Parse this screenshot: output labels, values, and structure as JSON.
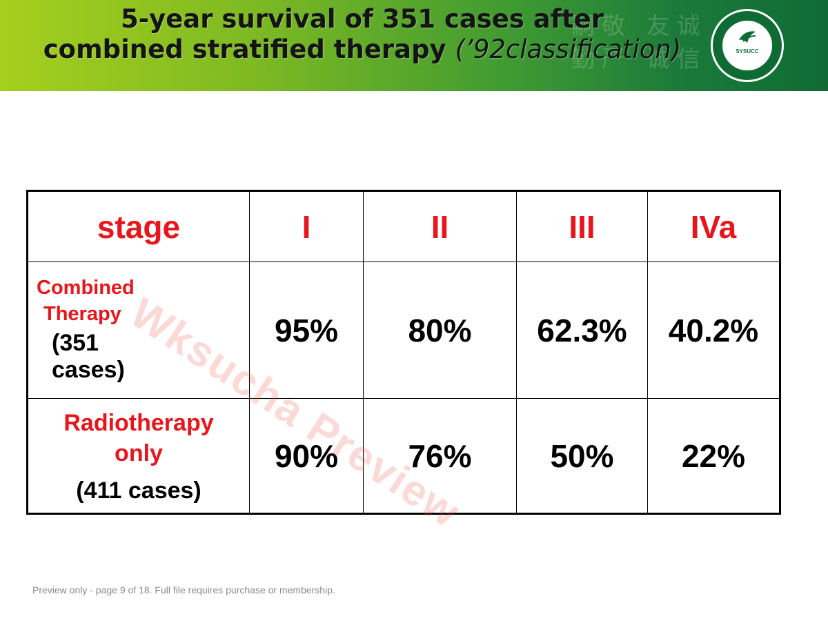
{
  "slide": {
    "title_line1": "5-year survival of 351 cases after",
    "title_line2_main": "combined stratified therapy ",
    "title_line2_italic": "(’92classification)",
    "logo_text": "SYSUCC"
  },
  "table": {
    "header": {
      "stage": "stage",
      "I": "I",
      "II": "II",
      "III": "III",
      "IVa": "IVa"
    },
    "rows": [
      {
        "label_red_1": "Combined",
        "label_red_2": "Therapy",
        "label_black": "(351 cases)",
        "values": [
          "95%",
          "80%",
          "62.3%",
          "40.2%"
        ]
      },
      {
        "label_red_1": "Radiotherapy",
        "label_red_2": "only",
        "label_black": "(411 cases)",
        "values": [
          "90%",
          "76%",
          "50%",
          "22%"
        ]
      }
    ]
  },
  "watermark": "Wksucha Preview",
  "footer": "Preview only - page 9 of 18. Full file requires purchase or membership."
}
